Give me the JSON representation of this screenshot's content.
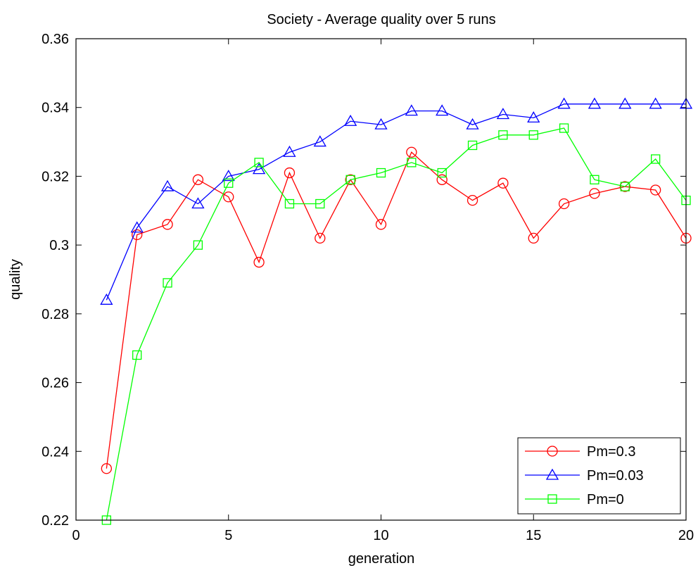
{
  "chart_data": {
    "type": "line",
    "title": "Society -  Average quality over 5 runs",
    "xlabel": "generation",
    "ylabel": "quality",
    "xlim": [
      0,
      20
    ],
    "ylim": [
      0.22,
      0.36
    ],
    "xticks": [
      0,
      5,
      10,
      15,
      20
    ],
    "xtick_labels": [
      "0",
      "5",
      "10",
      "15",
      "20"
    ],
    "yticks": [
      0.22,
      0.24,
      0.26,
      0.28,
      0.3,
      0.32,
      0.34,
      0.36
    ],
    "ytick_labels": [
      "0.22",
      "0.24",
      "0.26",
      "0.28",
      "0.3",
      "0.32",
      "0.34",
      "0.36"
    ],
    "grid": false,
    "legend_position": "bottom-right",
    "x": [
      1,
      2,
      3,
      4,
      5,
      6,
      7,
      8,
      9,
      10,
      11,
      12,
      13,
      14,
      15,
      16,
      17,
      18,
      19,
      20
    ],
    "series": [
      {
        "name": "Pm=0.3",
        "color": "#ff0000",
        "marker": "circle",
        "values": [
          0.235,
          0.303,
          0.306,
          0.319,
          0.314,
          0.295,
          0.321,
          0.302,
          0.319,
          0.306,
          0.327,
          0.319,
          0.313,
          0.318,
          0.302,
          0.312,
          0.315,
          0.317,
          0.316,
          0.302
        ]
      },
      {
        "name": "Pm=0.03",
        "color": "#0000ff",
        "marker": "triangle",
        "values": [
          0.284,
          0.305,
          0.317,
          0.312,
          0.32,
          0.322,
          0.327,
          0.33,
          0.336,
          0.335,
          0.339,
          0.339,
          0.335,
          0.338,
          0.337,
          0.341,
          0.341,
          0.341,
          0.341,
          0.341
        ]
      },
      {
        "name": "Pm=0",
        "color": "#00ff00",
        "marker": "square",
        "values": [
          0.22,
          0.268,
          0.289,
          0.3,
          0.318,
          0.324,
          0.312,
          0.312,
          0.319,
          0.321,
          0.324,
          0.321,
          0.329,
          0.332,
          0.332,
          0.334,
          0.319,
          0.317,
          0.325,
          0.313
        ]
      }
    ]
  }
}
